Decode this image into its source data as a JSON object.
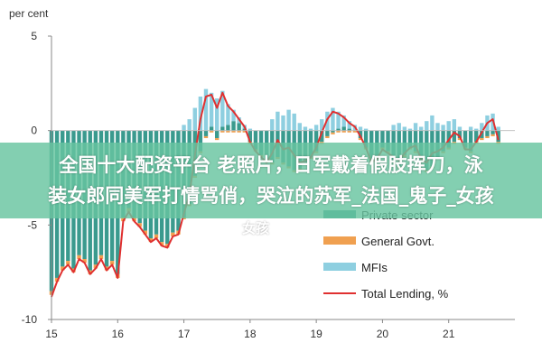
{
  "chart_data": {
    "type": "bar",
    "unit_label": "per cent",
    "ylim": [
      -10,
      5
    ],
    "yticks": [
      5,
      0,
      -5,
      -10
    ],
    "xlim": [
      15,
      22
    ],
    "xticks": [
      15,
      16,
      17,
      18,
      19,
      20,
      21
    ],
    "grid": false,
    "legend_position": "bottom-right",
    "stacked": true,
    "x_start": 15.0,
    "x_step": 0.08333,
    "series": [
      {
        "name": "Private sector",
        "kind": "bar",
        "color": "#3a9a8e",
        "values": [
          -8.5,
          -7.8,
          -7.2,
          -6.9,
          -7.3,
          -6.6,
          -6.8,
          -7.4,
          -7.1,
          -6.6,
          -7.2,
          -6.9,
          -7.6,
          -4.6,
          -4.1,
          -4.6,
          -4.9,
          -5.3,
          -5.7,
          -5.5,
          -5.9,
          -6.0,
          -5.4,
          -5.3,
          -4.6,
          -3.9,
          -2.4,
          -1.1,
          -0.3,
          0.2,
          -0.4,
          0.2,
          0.3,
          0.5,
          0.4,
          0.1,
          -0.6,
          -1.0,
          -1.3,
          -1.6,
          -1.7,
          -1.4,
          -1.7,
          -1.9,
          -2.1,
          -2.0,
          -1.7,
          -1.4,
          -1.1,
          -0.6,
          -0.3,
          -0.1,
          0.1,
          0.2,
          0.1,
          0.0,
          -0.4,
          -0.9,
          -1.6,
          -1.4,
          -0.9,
          -1.1,
          -1.6,
          -1.9,
          -1.3,
          -0.9,
          -1.1,
          -1.6,
          -2.1,
          -1.9,
          -1.4,
          -1.1,
          -0.9,
          -0.6,
          -0.4,
          -0.9,
          -1.1,
          -0.6,
          -0.4,
          -0.3,
          -0.2,
          -0.6
        ]
      },
      {
        "name": "General Govt.",
        "kind": "bar",
        "color": "#f0a050",
        "values": [
          -0.2,
          -0.2,
          -0.2,
          -0.2,
          -0.2,
          -0.2,
          -0.2,
          -0.2,
          -0.2,
          -0.2,
          -0.2,
          -0.2,
          -0.2,
          -0.2,
          -0.2,
          -0.2,
          -0.2,
          -0.2,
          -0.2,
          -0.2,
          -0.2,
          -0.2,
          -0.2,
          -0.2,
          -0.1,
          -0.1,
          -0.1,
          -0.1,
          -0.1,
          -0.1,
          -0.1,
          -0.1,
          -0.1,
          -0.1,
          -0.1,
          -0.1,
          -0.1,
          -0.1,
          -0.1,
          -0.1,
          -0.1,
          -0.1,
          -0.1,
          -0.1,
          -0.1,
          -0.1,
          -0.1,
          -0.1,
          -0.1,
          -0.1,
          -0.1,
          -0.1,
          -0.1,
          -0.1,
          -0.1,
          -0.1,
          -0.1,
          -0.1,
          -0.1,
          -0.1,
          -0.1,
          -0.1,
          -0.1,
          -0.1,
          -0.1,
          -0.1,
          -0.1,
          -0.1,
          -0.1,
          -0.1,
          -0.1,
          -0.1,
          -0.1,
          -0.1,
          -0.1,
          -0.1,
          -0.1,
          -0.1,
          -0.1,
          -0.1,
          -0.1,
          -0.1
        ]
      },
      {
        "name": "MFIs",
        "kind": "bar",
        "color": "#8ecfe0",
        "values": [
          0,
          0,
          0,
          0,
          0,
          0,
          0,
          0,
          0,
          0,
          0,
          0,
          0,
          0,
          0,
          0,
          0,
          0,
          0,
          0,
          0,
          0,
          0,
          0,
          0.3,
          0.6,
          1.2,
          1.8,
          2.2,
          1.8,
          1.7,
          1.9,
          1.1,
          0.6,
          0.3,
          0.2,
          0.1,
          0,
          0,
          0,
          0.6,
          1.0,
          0.8,
          1.1,
          0.9,
          0.4,
          0.2,
          0.1,
          0.3,
          0.6,
          1.0,
          1.2,
          0.9,
          0.6,
          0.4,
          0.3,
          0.2,
          0.1,
          0,
          0,
          0,
          0,
          0.3,
          0.4,
          0.2,
          0.1,
          0.4,
          0.2,
          0.5,
          0.8,
          0.4,
          0.3,
          0.5,
          0.6,
          0.2,
          0,
          0.2,
          0.1,
          0.4,
          0.8,
          0.9,
          0.2
        ]
      },
      {
        "name": "Total Lending, %",
        "kind": "line",
        "color": "#e03030",
        "values": [
          -8.8,
          -8.0,
          -7.4,
          -7.1,
          -7.5,
          -6.8,
          -7.0,
          -7.6,
          -7.3,
          -6.8,
          -7.4,
          -7.1,
          -7.8,
          -4.8,
          -4.3,
          -4.8,
          -5.1,
          -5.5,
          -5.9,
          -5.7,
          -6.1,
          -6.2,
          -5.6,
          -5.5,
          -4.4,
          -3.4,
          -1.3,
          0.6,
          1.8,
          1.9,
          1.2,
          2.0,
          1.3,
          1.0,
          0.6,
          0.2,
          -0.6,
          -1.1,
          -1.4,
          -1.7,
          -1.2,
          -0.5,
          -1.0,
          -0.9,
          -1.3,
          -1.7,
          -1.6,
          -1.4,
          -0.9,
          -0.1,
          0.6,
          1.0,
          0.9,
          0.7,
          0.4,
          0.2,
          -0.3,
          -0.9,
          -1.7,
          -1.5,
          -1.0,
          -1.2,
          -1.4,
          -1.6,
          -1.2,
          -0.9,
          -0.8,
          -1.5,
          -1.7,
          -1.2,
          -1.1,
          -0.9,
          -0.5,
          -0.1,
          -0.3,
          -1.0,
          -1.0,
          -0.6,
          -0.1,
          0.4,
          0.6,
          -0.5
        ]
      }
    ]
  },
  "overlay": {
    "line1": "全国十大配资平台 老照片，日军戴着假肢挥刀，泳",
    "line2": "装女郎同美军打情骂俏，哭泣的苏军_法国_鬼子_女孩",
    "tail": "女孩"
  }
}
